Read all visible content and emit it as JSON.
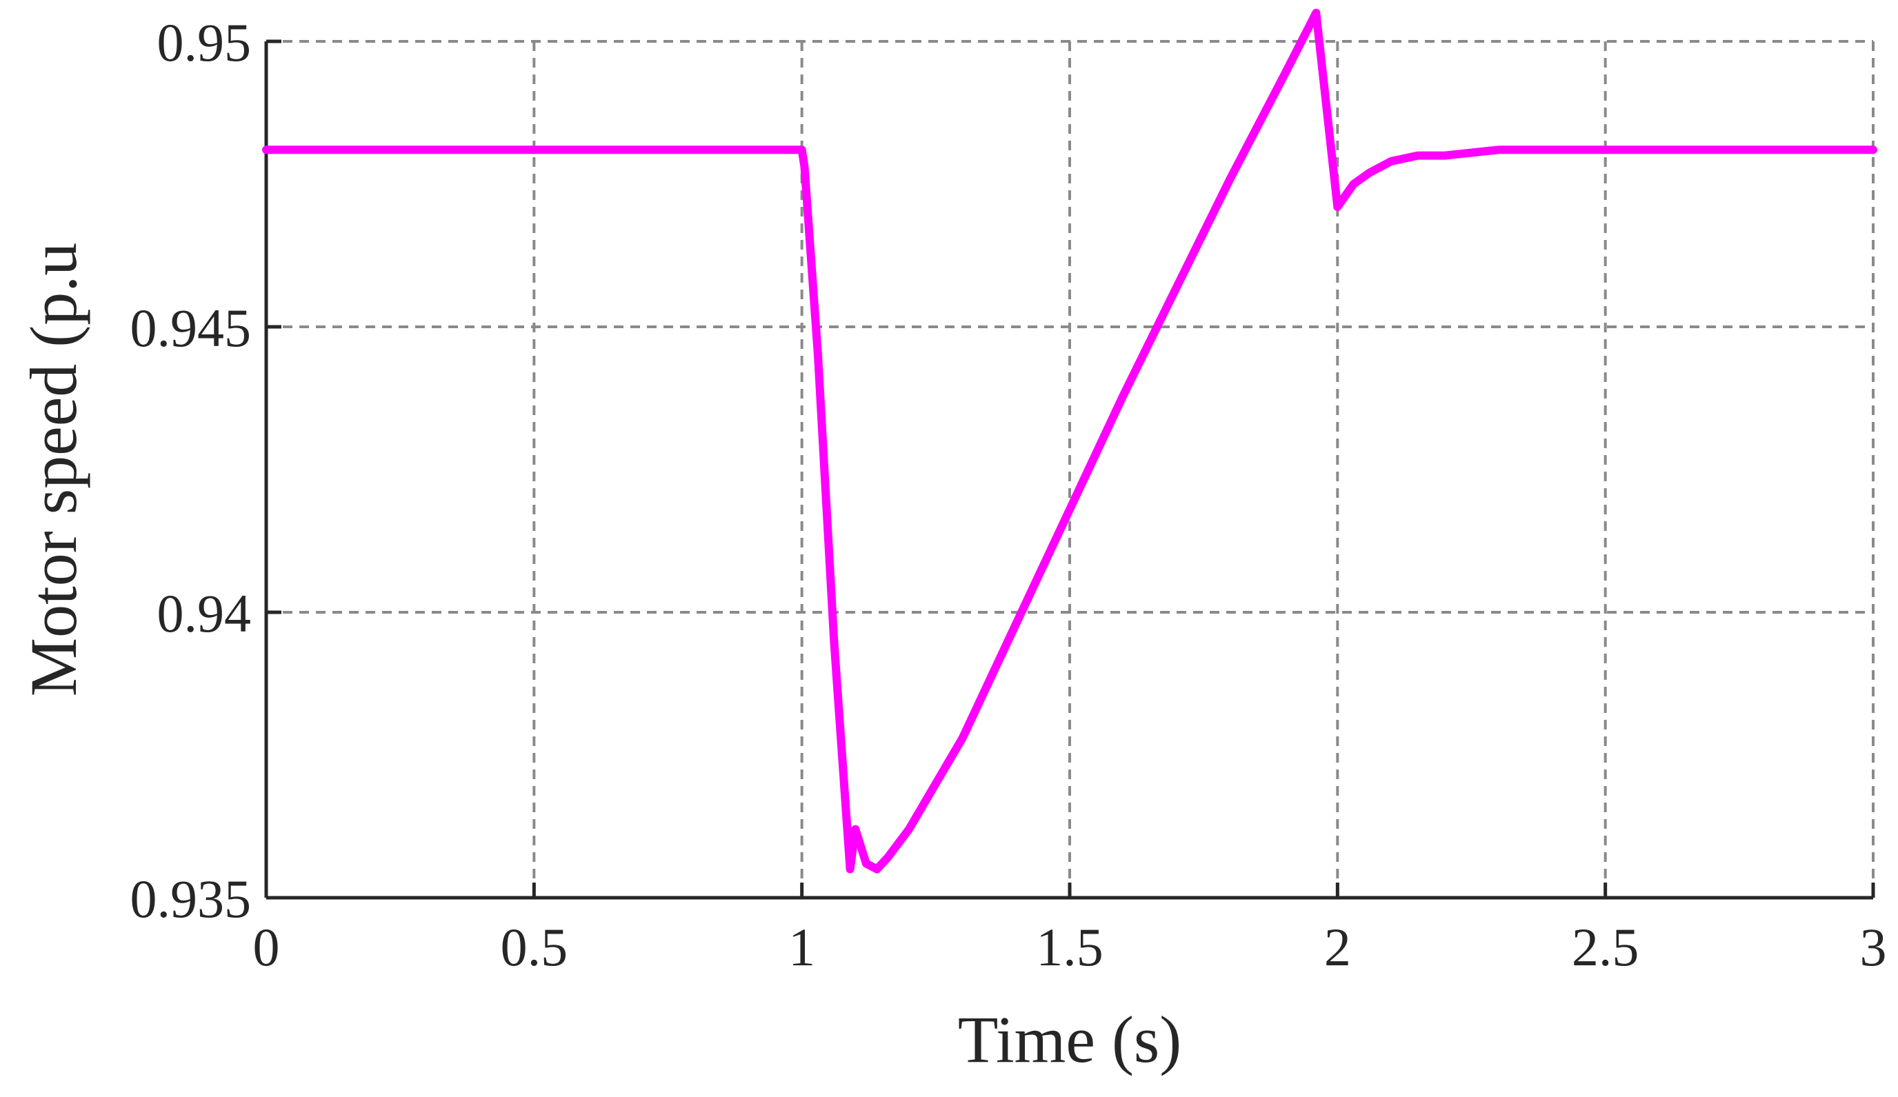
{
  "chart_data": {
    "type": "line",
    "title": "",
    "xlabel": "Time (s)",
    "ylabel": "Motor speed (p.u",
    "xlim": [
      0,
      3
    ],
    "ylim": [
      0.935,
      0.95
    ],
    "xticks": [
      0,
      0.5,
      1,
      1.5,
      2,
      2.5,
      3
    ],
    "xtick_labels": [
      "0",
      "0.5",
      "1",
      "1.5",
      "2",
      "2.5",
      "3"
    ],
    "yticks": [
      0.935,
      0.94,
      0.945,
      0.95
    ],
    "ytick_labels": [
      "0.935",
      "0.94",
      "0.945",
      "0.95"
    ],
    "grid": true,
    "grid_style": "dashed",
    "line_color": "#ff00ff",
    "series": [
      {
        "x": [
          0,
          0.5,
          1.0,
          1.005,
          1.03,
          1.06,
          1.09,
          1.1,
          1.12,
          1.14,
          1.16,
          1.2,
          1.3,
          1.4,
          1.5,
          1.6,
          1.7,
          1.8,
          1.9,
          1.96,
          2.0,
          2.03,
          2.06,
          2.1,
          2.15,
          2.2,
          2.3,
          2.4,
          2.5,
          2.7,
          3.0
        ],
        "y": [
          0.9481,
          0.9481,
          0.9481,
          0.9478,
          0.9445,
          0.9395,
          0.9355,
          0.9362,
          0.9356,
          0.9355,
          0.9357,
          0.9362,
          0.9378,
          0.9398,
          0.9418,
          0.9438,
          0.9457,
          0.9476,
          0.9494,
          0.9505,
          0.9471,
          0.9475,
          0.9477,
          0.9479,
          0.948,
          0.948,
          0.9481,
          0.9481,
          0.9481,
          0.9481,
          0.9481
        ]
      }
    ]
  }
}
